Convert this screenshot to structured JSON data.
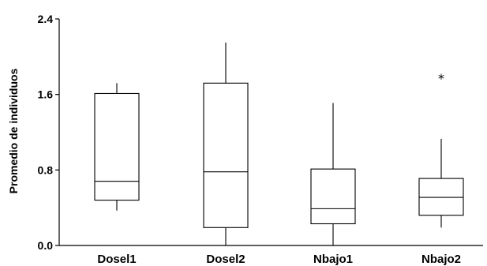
{
  "chart_data": {
    "type": "boxplot",
    "ylabel": "Promedio de individuos",
    "xlabel": "",
    "ylim": [
      0.0,
      2.4
    ],
    "yticks": [
      "0.0",
      "0.8",
      "1.6",
      "2.4"
    ],
    "categories": [
      "Dosel1",
      "Dosel2",
      "Nbajo1",
      "Nbajo2"
    ],
    "boxes": [
      {
        "min": 0.37,
        "q1": 0.48,
        "median": 0.68,
        "q3": 1.61,
        "max": 1.72,
        "outliers": []
      },
      {
        "min": 0.0,
        "q1": 0.19,
        "median": 0.78,
        "q3": 1.72,
        "max": 2.15,
        "outliers": []
      },
      {
        "min": 0.0,
        "q1": 0.23,
        "median": 0.39,
        "q3": 0.81,
        "max": 1.51,
        "outliers": []
      },
      {
        "min": 0.19,
        "q1": 0.32,
        "median": 0.51,
        "q3": 0.71,
        "max": 1.13,
        "outliers": [
          1.78
        ]
      }
    ],
    "outlier_marker": "*",
    "grid": false
  }
}
